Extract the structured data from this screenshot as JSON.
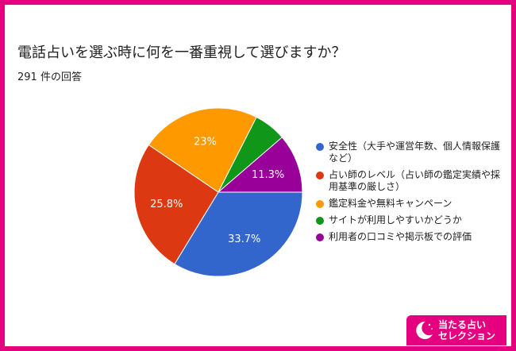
{
  "chart_data": {
    "type": "pie",
    "title": "電話占いを選ぶ時に何を一番重視して選びますか？",
    "subtitle": "291 件の回答",
    "slices": [
      {
        "label": "安全性（大手や運営年数、個人情報保護など）",
        "value": 33.7,
        "display": "33.7%",
        "color": "#3366cc"
      },
      {
        "label": "占い師のレベル（占い師の鑑定実績や採用基準の厳しさ）",
        "value": 25.8,
        "display": "25.8%",
        "color": "#dc3912"
      },
      {
        "label": "鑑定料金や無料キャンペーン",
        "value": 23.0,
        "display": "23%",
        "color": "#ff9900"
      },
      {
        "label": "サイトが利用しやすいかどうか",
        "value": 6.2,
        "display": "",
        "color": "#109618"
      },
      {
        "label": "利用者の口コミや掲示板での評価",
        "value": 11.3,
        "display": "11.3%",
        "color": "#990099"
      }
    ],
    "legend_position": "right"
  },
  "logo": {
    "text": "当たる占い\nセレクション",
    "color": "#e4007f"
  }
}
